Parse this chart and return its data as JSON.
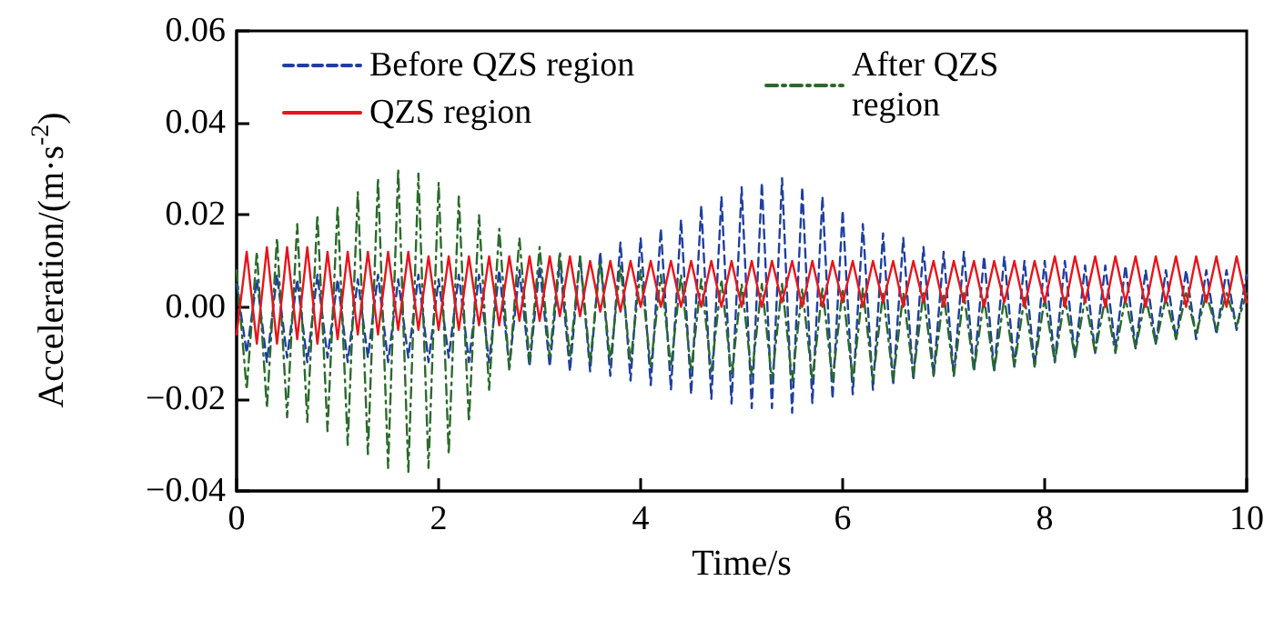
{
  "chart_data": {
    "type": "line",
    "xlabel": "Time/s",
    "ylabel": "Acceleration/(m·s$^{-2}$)",
    "xlim": [
      0,
      10
    ],
    "xticks": [
      0,
      2,
      4,
      6,
      8,
      10
    ],
    "ylim": [
      -0.04,
      0.06
    ],
    "yticks": [
      {
        "value": -0.04,
        "label": "−0.04"
      },
      {
        "value": -0.02,
        "label": "−0.02"
      },
      {
        "value": 0,
        "label": "0.00"
      },
      {
        "value": 0.02,
        "label": "0.02"
      },
      {
        "value": 0.04,
        "label": "0.04"
      },
      {
        "value": 0.06,
        "label": "0.06"
      }
    ],
    "grid": false,
    "legend": "top",
    "marker": "none",
    "x": [
      0,
      0.1,
      0.2,
      0.3,
      0.4,
      0.5,
      0.6,
      0.7,
      0.8,
      0.9,
      1,
      1.1,
      1.2,
      1.3,
      1.4,
      1.5,
      1.6,
      1.7,
      1.8,
      1.9,
      2,
      2.1,
      2.2,
      2.3,
      2.4,
      2.5,
      2.6,
      2.7,
      2.8,
      2.9,
      3,
      3.1,
      3.2,
      3.3,
      3.4,
      3.5,
      3.6,
      3.7,
      3.8,
      3.9,
      4,
      4.1,
      4.2,
      4.3,
      4.4,
      4.5,
      4.6,
      4.7,
      4.8,
      4.9,
      5,
      5.1,
      5.2,
      5.3,
      5.4,
      5.5,
      5.6,
      5.7,
      5.8,
      5.9,
      6,
      6.1,
      6.2,
      6.3,
      6.4,
      6.5,
      6.6,
      6.7,
      6.8,
      6.9,
      7,
      7.1,
      7.2,
      7.3,
      7.4,
      7.5,
      7.6,
      7.7,
      7.8,
      7.9,
      8,
      8.1,
      8.2,
      8.3,
      8.4,
      8.5,
      8.6,
      8.7,
      8.8,
      8.9,
      9,
      9.1,
      9.2,
      9.3,
      9.4,
      9.5,
      9.6,
      9.7,
      9.8,
      9.9,
      10
    ],
    "series": [
      {
        "name": "Before QZS region",
        "color": "#1f3fa0",
        "line_style": "dashed",
        "values": [
          0.005,
          -0.01,
          0.006,
          -0.012,
          0.007,
          -0.011,
          0.006,
          -0.012,
          0.007,
          -0.011,
          0.006,
          -0.012,
          0.006,
          -0.011,
          0.007,
          -0.012,
          0.006,
          -0.011,
          0.007,
          -0.012,
          0.006,
          -0.011,
          0.007,
          -0.012,
          0.007,
          -0.012,
          0.008,
          -0.013,
          0.008,
          -0.013,
          0.009,
          -0.013,
          0.01,
          -0.014,
          0.011,
          -0.014,
          0.012,
          -0.015,
          0.014,
          -0.016,
          0.015,
          -0.017,
          0.017,
          -0.018,
          0.019,
          -0.019,
          0.022,
          -0.02,
          0.024,
          -0.021,
          0.026,
          -0.022,
          0.027,
          -0.022,
          0.028,
          -0.023,
          0.026,
          -0.021,
          0.024,
          -0.02,
          0.021,
          -0.019,
          0.018,
          -0.018,
          0.016,
          -0.017,
          0.015,
          -0.016,
          0.013,
          -0.015,
          0.012,
          -0.015,
          0.012,
          -0.014,
          0.011,
          -0.014,
          0.011,
          -0.013,
          0.01,
          -0.013,
          0.01,
          -0.012,
          0.01,
          -0.011,
          0.009,
          -0.01,
          0.009,
          -0.009,
          0.009,
          -0.009,
          0.008,
          -0.008,
          0.008,
          -0.007,
          0.008,
          -0.007,
          0.008,
          -0.006,
          0.008,
          -0.005,
          0.007
        ]
      },
      {
        "name": "QZS region",
        "color": "#e8141c",
        "line_style": "solid",
        "values": [
          -0.006,
          0.012,
          -0.008,
          0.013,
          -0.008,
          0.013,
          -0.007,
          0.013,
          -0.008,
          0.012,
          -0.007,
          0.012,
          -0.006,
          0.012,
          -0.006,
          0.012,
          -0.005,
          0.012,
          -0.005,
          0.011,
          -0.005,
          0.011,
          -0.005,
          0.011,
          -0.004,
          0.011,
          -0.004,
          0.011,
          -0.003,
          0.011,
          -0.003,
          0.011,
          -0.002,
          0.011,
          -0.002,
          0.01,
          -0.001,
          0.01,
          -0.001,
          0.01,
          0.0,
          0.01,
          0.0,
          0.01,
          0.0,
          0.01,
          0.0,
          0.01,
          0.0,
          0.01,
          0.0,
          0.01,
          0.0,
          0.01,
          0.001,
          0.01,
          0.0,
          0.01,
          0.0,
          0.01,
          0.001,
          0.01,
          0.0,
          0.01,
          0.001,
          0.01,
          0.0,
          0.01,
          0.001,
          0.01,
          0.0,
          0.01,
          0.001,
          0.01,
          0.0,
          0.01,
          0.001,
          0.01,
          0.0,
          0.01,
          0.001,
          0.011,
          0.0,
          0.011,
          0.001,
          0.011,
          0.0,
          0.011,
          0.001,
          0.011,
          0.0,
          0.011,
          0.001,
          0.011,
          0.0,
          0.011,
          0.001,
          0.011,
          0.0,
          0.011,
          0.001
        ]
      },
      {
        "name": "After QZS region",
        "color": "#2a6a2a",
        "line_style": "dashdot",
        "values": [
          0.008,
          -0.018,
          0.012,
          -0.022,
          0.015,
          -0.024,
          0.018,
          -0.025,
          0.02,
          -0.027,
          0.022,
          -0.03,
          0.025,
          -0.032,
          0.028,
          -0.035,
          0.03,
          -0.036,
          0.029,
          -0.035,
          0.027,
          -0.032,
          0.024,
          -0.025,
          0.02,
          -0.018,
          0.017,
          -0.014,
          0.015,
          -0.012,
          0.013,
          -0.011,
          0.012,
          -0.011,
          0.011,
          -0.012,
          0.01,
          -0.012,
          0.009,
          -0.012,
          0.008,
          -0.013,
          0.007,
          -0.013,
          0.007,
          -0.014,
          0.006,
          -0.014,
          0.006,
          -0.015,
          0.005,
          -0.015,
          0.005,
          -0.016,
          0.005,
          -0.016,
          0.004,
          -0.016,
          0.004,
          -0.016,
          0.004,
          -0.016,
          0.004,
          -0.016,
          0.003,
          -0.016,
          0.003,
          -0.015,
          0.003,
          -0.015,
          0.003,
          -0.015,
          0.003,
          -0.014,
          0.002,
          -0.014,
          0.002,
          -0.013,
          0.002,
          -0.013,
          0.002,
          -0.012,
          0.002,
          -0.011,
          0.002,
          -0.01,
          0.002,
          -0.01,
          0.002,
          -0.009,
          0.002,
          -0.008,
          0.002,
          -0.007,
          0.003,
          -0.006,
          0.003,
          -0.005,
          0.003,
          -0.004,
          0.003
        ]
      }
    ]
  }
}
